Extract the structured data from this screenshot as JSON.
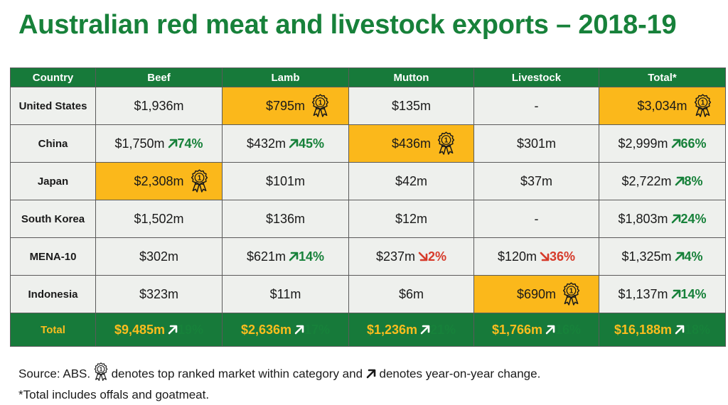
{
  "title": "Australian red meat and livestock exports – 2018-19",
  "colors": {
    "green": "#177a3a",
    "title_green": "#17813a",
    "gold": "#fbb81b",
    "cell": "#eef0ed",
    "up": "#17813a",
    "down": "#d63a2a"
  },
  "chart_data": {
    "type": "table",
    "title": "Australian red meat and livestock exports – 2018-19",
    "columns": [
      "Country",
      "Beef",
      "Lamb",
      "Mutton",
      "Livestock",
      "Total*"
    ],
    "rows": [
      {
        "country": "United States",
        "cells": [
          {
            "value": "$1,936m",
            "change": null,
            "dir": null,
            "top": false
          },
          {
            "value": "$795m",
            "change": null,
            "dir": null,
            "top": true
          },
          {
            "value": "$135m",
            "change": null,
            "dir": null,
            "top": false
          },
          {
            "value": "-",
            "change": null,
            "dir": null,
            "top": false
          },
          {
            "value": "$3,034m",
            "change": null,
            "dir": null,
            "top": true
          }
        ]
      },
      {
        "country": "China",
        "cells": [
          {
            "value": "$1,750m",
            "change": "74%",
            "dir": "up",
            "top": false
          },
          {
            "value": "$432m",
            "change": "45%",
            "dir": "up",
            "top": false
          },
          {
            "value": "$436m",
            "change": null,
            "dir": null,
            "top": true
          },
          {
            "value": "$301m",
            "change": null,
            "dir": null,
            "top": false
          },
          {
            "value": "$2,999m",
            "change": "66%",
            "dir": "up",
            "top": false
          }
        ]
      },
      {
        "country": "Japan",
        "cells": [
          {
            "value": "$2,308m",
            "change": null,
            "dir": null,
            "top": true
          },
          {
            "value": "$101m",
            "change": null,
            "dir": null,
            "top": false
          },
          {
            "value": "$42m",
            "change": null,
            "dir": null,
            "top": false
          },
          {
            "value": "$37m",
            "change": null,
            "dir": null,
            "top": false
          },
          {
            "value": "$2,722m",
            "change": "8%",
            "dir": "up",
            "top": false
          }
        ]
      },
      {
        "country": "South Korea",
        "cells": [
          {
            "value": "$1,502m",
            "change": null,
            "dir": null,
            "top": false
          },
          {
            "value": "$136m",
            "change": null,
            "dir": null,
            "top": false
          },
          {
            "value": "$12m",
            "change": null,
            "dir": null,
            "top": false
          },
          {
            "value": "-",
            "change": null,
            "dir": null,
            "top": false
          },
          {
            "value": "$1,803m",
            "change": "24%",
            "dir": "up",
            "top": false
          }
        ]
      },
      {
        "country": "MENA-10",
        "cells": [
          {
            "value": "$302m",
            "change": null,
            "dir": null,
            "top": false
          },
          {
            "value": "$621m",
            "change": "14%",
            "dir": "up",
            "top": false
          },
          {
            "value": "$237m",
            "change": "2%",
            "dir": "down",
            "top": false
          },
          {
            "value": "$120m",
            "change": "36%",
            "dir": "down",
            "top": false
          },
          {
            "value": "$1,325m",
            "change": "4%",
            "dir": "up",
            "top": false
          }
        ]
      },
      {
        "country": "Indonesia",
        "cells": [
          {
            "value": "$323m",
            "change": null,
            "dir": null,
            "top": false
          },
          {
            "value": "$11m",
            "change": null,
            "dir": null,
            "top": false
          },
          {
            "value": "$6m",
            "change": null,
            "dir": null,
            "top": false
          },
          {
            "value": "$690m",
            "change": null,
            "dir": null,
            "top": true
          },
          {
            "value": "$1,137m",
            "change": "14%",
            "dir": "up",
            "top": false
          }
        ]
      }
    ],
    "total": {
      "label": "Total",
      "cells": [
        {
          "value": "$9,485m",
          "change": "19%",
          "dir": "up"
        },
        {
          "value": "$2,636m",
          "change": "17%",
          "dir": "up"
        },
        {
          "value": "$1,236m",
          "change": "21%",
          "dir": "up"
        },
        {
          "value": "$1,766m",
          "change": "16%",
          "dir": "up"
        },
        {
          "value": "$16,188m",
          "change": "18%",
          "dir": "up"
        }
      ]
    }
  },
  "footer": {
    "line1_pre": "Source: ABS.",
    "line1_mid": "denotes top ranked market within category and",
    "line1_post": "denotes year-on-year change.",
    "line2": "*Total includes offals and goatmeat."
  },
  "icons": {
    "award": "award-ribbon-icon",
    "up": "arrow-up-right-icon",
    "down": "arrow-down-right-icon",
    "award_number": "1"
  }
}
